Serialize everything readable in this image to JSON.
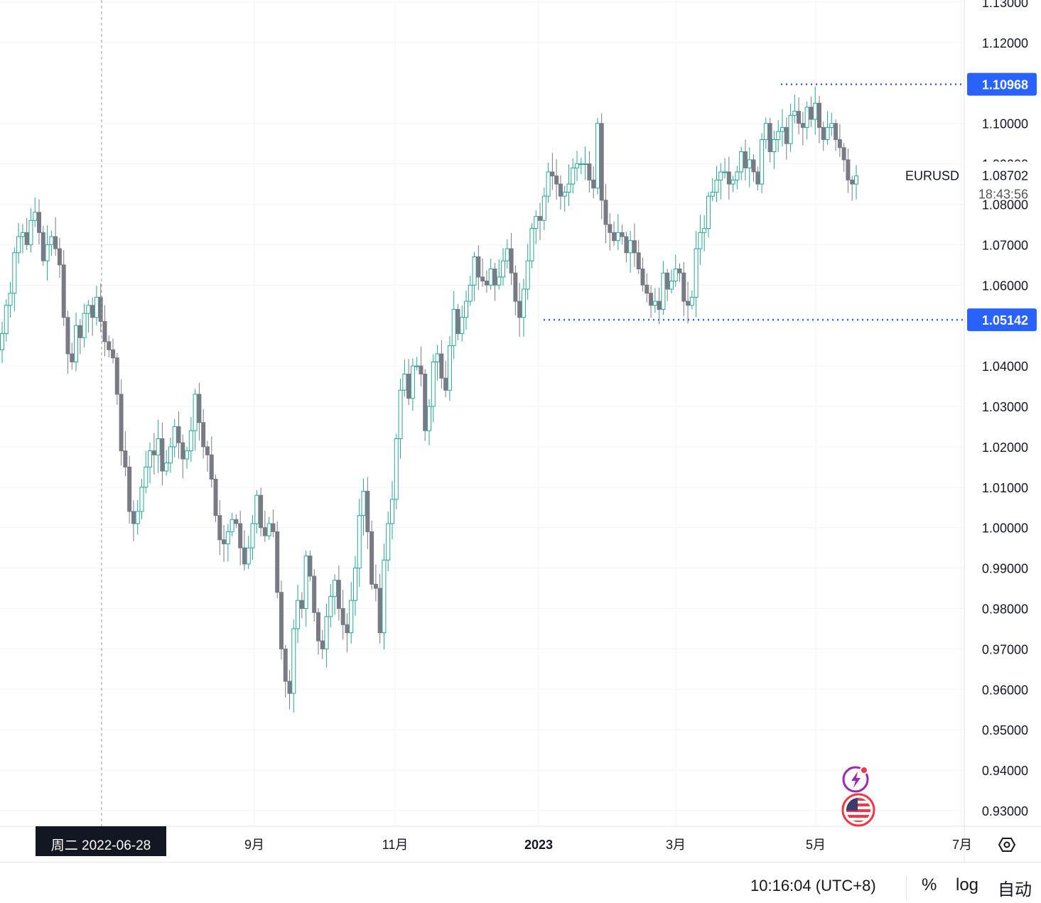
{
  "chart_data": {
    "type": "candlestick",
    "symbol": "EURUSD",
    "last_price": "1.08702",
    "countdown": "18:43:56",
    "crosshair_date": "周二 2022-06-28",
    "y_ticks": [
      "1.13000",
      "1.12000",
      "1.10968",
      "1.10000",
      "1.09000",
      "1.08000",
      "1.07000",
      "1.06000",
      "1.05142",
      "1.04000",
      "1.03000",
      "1.02000",
      "1.01000",
      "1.00000",
      "0.99000",
      "0.98000",
      "0.97000",
      "0.96000",
      "0.95000",
      "0.94000",
      "0.93000"
    ],
    "x_ticks": [
      "9月",
      "11月",
      "2023",
      "3月",
      "5月",
      "7月"
    ],
    "ylim": [
      0.925,
      1.133
    ],
    "high_line": {
      "value": 1.10968,
      "label": "1.10968"
    },
    "low_line": {
      "value": 1.05142,
      "label": "1.05142"
    },
    "colors": {
      "up": "#26a69a",
      "down": "#787b86",
      "marker": "#2962ff",
      "grid": "#f0f3fa"
    },
    "approx_closes": [
      [
        1.048,
        1.055,
        1.058,
        1.068,
        1.072,
        1.073,
        1.07,
        1.076,
        1.078,
        1.073,
        1.066,
        1.07,
        1.072,
        1.069,
        1.065,
        1.052,
        1.043,
        1.041,
        1.05,
        1.047,
        1.053,
        1.055,
        1.052,
        1.057,
        1.051,
        1.046,
        1.044,
        1.042,
        1.033,
        1.019,
        1.015,
        1.004,
        1.001,
        1.004,
        1.01,
        1.015,
        1.019,
        1.018,
        1.022,
        1.014,
        1.016,
        1.02,
        1.025,
        1.021,
        1.017,
        1.019,
        1.024,
        1.033,
        1.026,
        1.02,
        1.018,
        1.012,
        1.003,
        0.997,
        0.996,
        0.999,
        1.002,
        1.001,
        0.995,
        0.991,
        0.995,
        1.001,
        1.008,
        1.0,
        0.998,
        1.001,
        0.999,
        0.984,
        0.97,
        0.962,
        0.959,
        0.975,
        0.982,
        0.98,
        0.993,
        0.988,
        0.979,
        0.972,
        0.97,
        0.978,
        0.983,
        0.987,
        0.98,
        0.976,
        0.974,
        0.982,
        0.99,
        1.003,
        1.009,
        0.999,
        0.986,
        0.985,
        0.974,
        0.992,
        1.001,
        1.007,
        1.022,
        1.034,
        1.038,
        1.032,
        1.04,
        1.04,
        1.038,
        1.024,
        1.03,
        1.041,
        1.043,
        1.037,
        1.034,
        1.045,
        1.054,
        1.048,
        1.052,
        1.056,
        1.06,
        1.067,
        1.062,
        1.061,
        1.06,
        1.064,
        1.06,
        1.062,
        1.066,
        1.069,
        1.063,
        1.056,
        1.052,
        1.059,
        1.066,
        1.074,
        1.077,
        1.076,
        1.082,
        1.088,
        1.087,
        1.085,
        1.082,
        1.083,
        1.085,
        1.089,
        1.09,
        1.09,
        1.09,
        1.086,
        1.084,
        1.1,
        1.081,
        1.075,
        1.073,
        1.071,
        1.073,
        1.072,
        1.068,
        1.071,
        1.068,
        1.064,
        1.06,
        1.058,
        1.055,
        1.056,
        1.054,
        1.063,
        1.059,
        1.061,
        1.064,
        1.063,
        1.056,
        1.055,
        1.057,
        1.069,
        1.073,
        1.074,
        1.082,
        1.083,
        1.086,
        1.088,
        1.088,
        1.085,
        1.086,
        1.088,
        1.093,
        1.089,
        1.091,
        1.088,
        1.085,
        1.096,
        1.1,
        1.093,
        1.096,
        1.098,
        1.099,
        1.095,
        1.102,
        1.103,
        1.1,
        1.099,
        1.104,
        1.101,
        1.105,
        1.099,
        1.096,
        1.099,
        1.1,
        1.096,
        1.094,
        1.091,
        1.086,
        1.085,
        1.087
      ]
    ]
  },
  "footer": {
    "clock": "10:16:04 (UTC+8)",
    "percent": "%",
    "log": "log",
    "auto": "自动"
  },
  "icons": [
    "settings-icon",
    "lightning-event-icon",
    "us-flag-event-icon"
  ]
}
